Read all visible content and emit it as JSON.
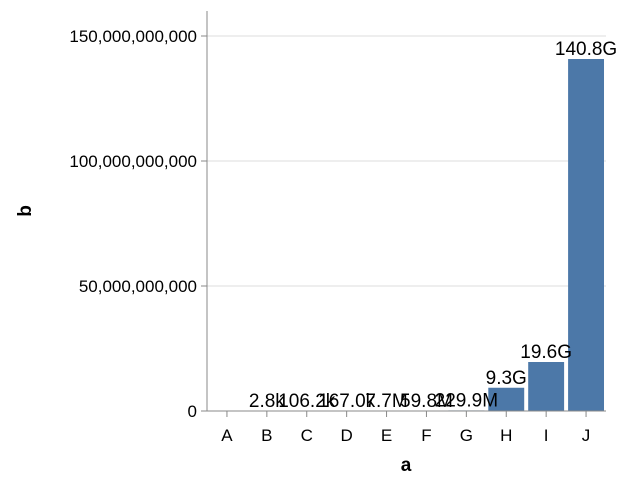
{
  "chart_data": {
    "type": "bar",
    "xlabel": "a",
    "ylabel": "b",
    "categories": [
      "A",
      "B",
      "C",
      "D",
      "E",
      "F",
      "G",
      "H",
      "I",
      "J"
    ],
    "values": [
      0,
      2800,
      106200,
      167000,
      7700000,
      59800000,
      229900000,
      9300000000,
      19600000000,
      140800000000
    ],
    "data_labels": [
      "",
      "2.8k",
      "106.2k",
      "167.0k",
      "7.7M",
      "59.8M",
      "229.9M",
      "9.3G",
      "19.6G",
      "140.8G"
    ],
    "ylim": [
      0,
      160000000000
    ],
    "yticks": [
      0,
      50000000000,
      100000000000,
      150000000000
    ],
    "ytick_labels": [
      "0",
      "50,000,000,000",
      "100,000,000,000",
      "150,000,000,000"
    ],
    "grid": true,
    "bar_color": "#4c78a8",
    "grid_color": "#dddddd",
    "axis_color": "#888888"
  }
}
